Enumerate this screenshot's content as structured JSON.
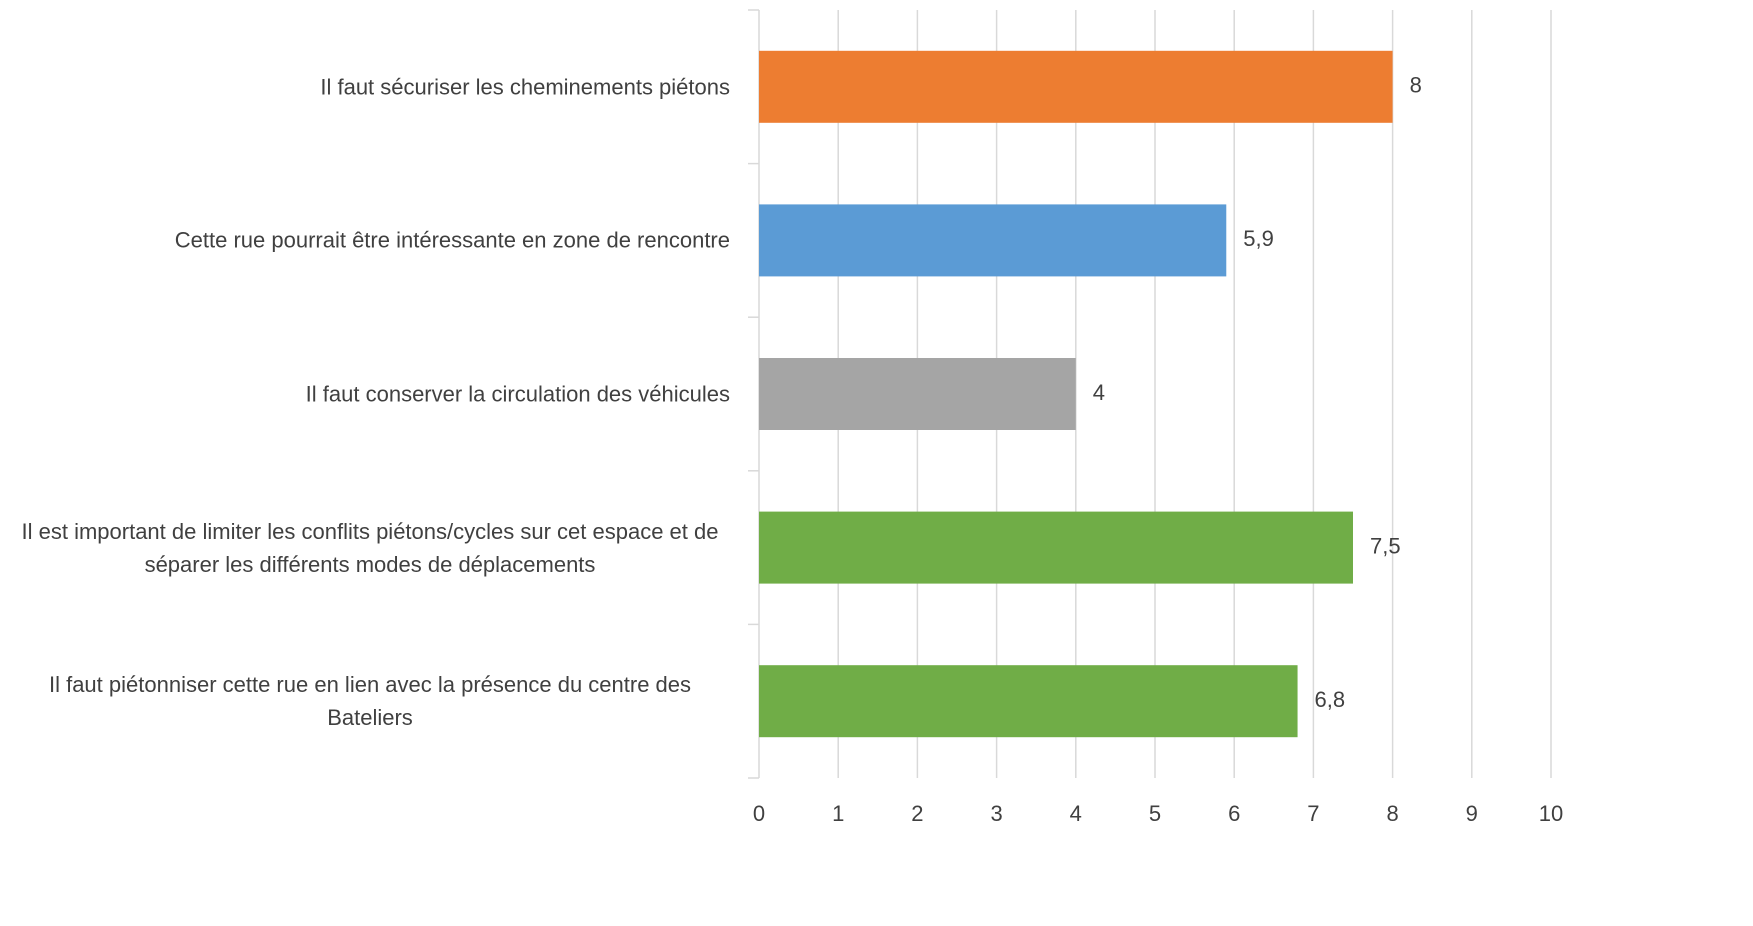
{
  "chart_data": {
    "type": "bar",
    "orientation": "horizontal",
    "categories": [
      "Il faut sécuriser les cheminements piétons",
      "Cette rue pourrait être intéressante en zone de rencontre",
      "Il faut conserver la circulation des véhicules",
      "Il est important de limiter les conflits piétons/cycles sur cet espace et de séparer les différents modes de déplacements",
      "Il faut piétonniser cette rue en lien avec la présence du centre des Bateliers"
    ],
    "values": [
      8,
      5.9,
      4,
      7.5,
      6.8
    ],
    "value_labels": [
      "8",
      "5,9",
      "4",
      "7,5",
      "6,8"
    ],
    "colors": [
      "#ED7D31",
      "#5B9BD5",
      "#A5A5A5",
      "#70AD47",
      "#70AD47"
    ],
    "xlim": [
      0,
      10
    ],
    "xticks": [
      0,
      1,
      2,
      3,
      4,
      5,
      6,
      7,
      8,
      9,
      10
    ],
    "grid": true
  }
}
